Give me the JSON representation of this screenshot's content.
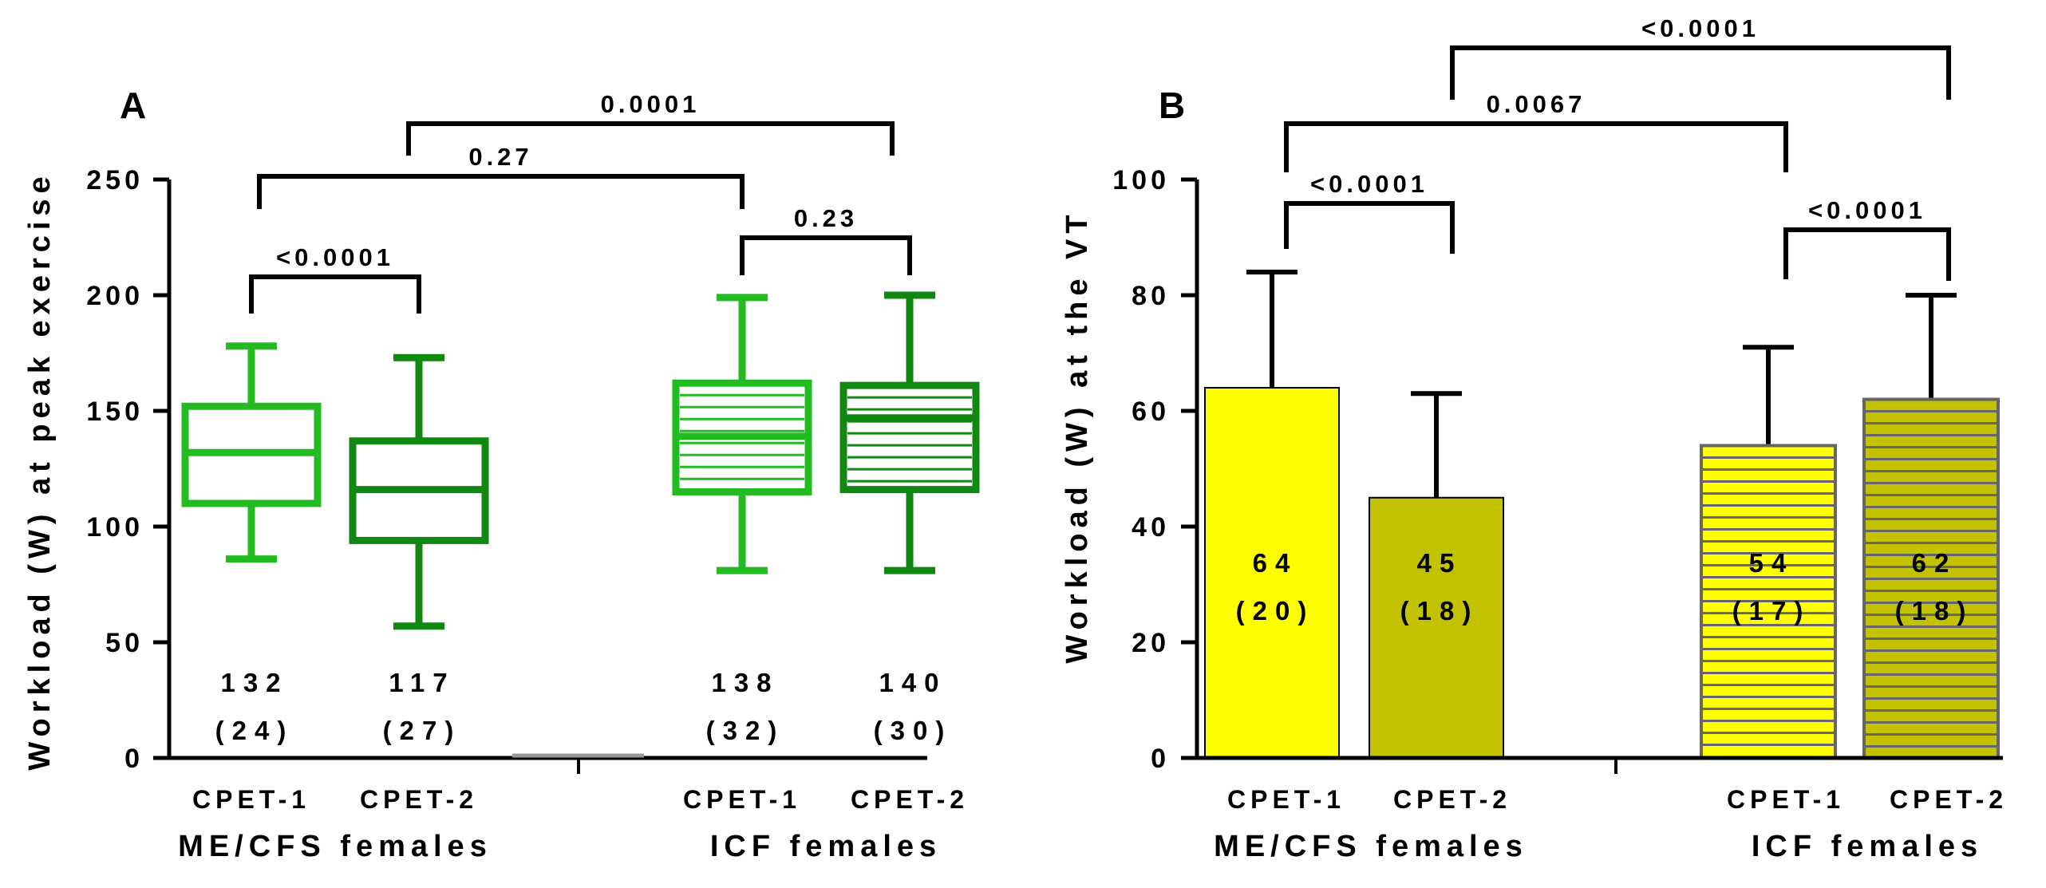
{
  "chart_data": [
    {
      "panel": "A",
      "type": "box",
      "ylabel": "Workload (W) at peak exercise",
      "ylim": [
        0,
        250
      ],
      "yticks": [
        "0",
        "50",
        "100",
        "150",
        "200",
        "250"
      ],
      "groups": [
        {
          "name": "ME/CFS females",
          "labels": [
            "CPET-1",
            "CPET-2"
          ]
        },
        {
          "name": "ICF females",
          "labels": [
            "CPET-1",
            "CPET-2"
          ]
        }
      ],
      "series": [
        {
          "name": "ME/CFS females CPET-1",
          "min": 86,
          "q1": 110,
          "median": 132,
          "q3": 152,
          "max": 178,
          "mean": "132",
          "sd": "(24)",
          "color": "#22bb22",
          "striped": false
        },
        {
          "name": "ME/CFS females CPET-2",
          "min": 57,
          "q1": 94,
          "median": 116,
          "q3": 137,
          "max": 173,
          "mean": "117",
          "sd": "(27)",
          "color": "#118811",
          "striped": false
        },
        {
          "name": "ICF females CPET-1",
          "min": 81,
          "q1": 115,
          "median": 139,
          "q3": 162,
          "max": 199,
          "mean": "138",
          "sd": "(32)",
          "color": "#22bb22",
          "striped": true
        },
        {
          "name": "ICF females CPET-2",
          "min": 81,
          "q1": 116,
          "median": 147,
          "q3": 161,
          "max": 200,
          "mean": "140",
          "sd": "(30)",
          "color": "#118811",
          "striped": true
        }
      ],
      "comparisons": [
        {
          "label": "<0.0001",
          "from": 0,
          "to": 1
        },
        {
          "label": "0.23",
          "from": 2,
          "to": 3
        },
        {
          "label": "0.27",
          "from": 0,
          "to": 2
        },
        {
          "label": "0.0001",
          "from": 1,
          "to": 3
        }
      ]
    },
    {
      "panel": "B",
      "type": "bar",
      "ylabel": "Workload (W) at the VT",
      "ylim": [
        0,
        100
      ],
      "yticks": [
        "0",
        "20",
        "40",
        "60",
        "80",
        "100"
      ],
      "groups": [
        {
          "name": "ME/CFS females",
          "labels": [
            "CPET-1",
            "CPET-2"
          ]
        },
        {
          "name": "ICF females",
          "labels": [
            "CPET-1",
            "CPET-2"
          ]
        }
      ],
      "series": [
        {
          "name": "ME/CFS females CPET-1",
          "value": 64,
          "error": 20,
          "mean": "64",
          "sd": "(20)",
          "color": "#ffff00",
          "striped": false
        },
        {
          "name": "ME/CFS females CPET-2",
          "value": 45,
          "error": 18,
          "mean": "45",
          "sd": "(18)",
          "color": "#c2c200",
          "striped": false
        },
        {
          "name": "ICF females CPET-1",
          "value": 54,
          "error": 17,
          "mean": "54",
          "sd": "(17)",
          "color": "#ffff00",
          "striped": true
        },
        {
          "name": "ICF females CPET-2",
          "value": 62,
          "error": 18,
          "mean": "62",
          "sd": "(18)",
          "color": "#c2c200",
          "striped": true
        }
      ],
      "comparisons": [
        {
          "label": "<0.0001",
          "from": 0,
          "to": 1
        },
        {
          "label": "<0.0001",
          "from": 2,
          "to": 3
        },
        {
          "label": "0.0067",
          "from": 0,
          "to": 2
        },
        {
          "label": "<0.0001",
          "from": 1,
          "to": 3
        }
      ]
    }
  ]
}
